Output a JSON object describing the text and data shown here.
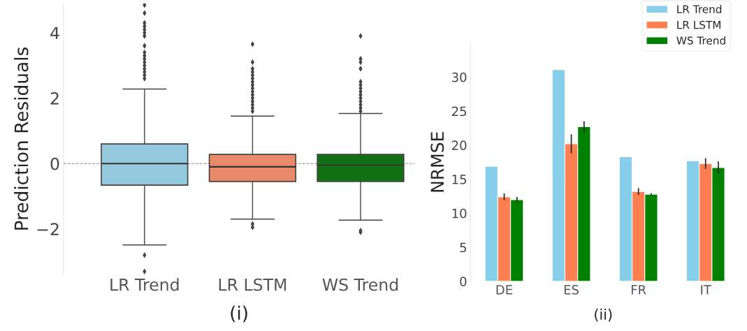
{
  "chart_data": [
    {
      "type": "box",
      "xlabel": "(i)",
      "ylabel": "Prediction Residuals",
      "categories": [
        "LR Trend",
        "LR LSTM",
        "WS Trend"
      ],
      "colors": [
        "#95c9de",
        "#e8896a",
        "#117011"
      ],
      "ylim": [
        -3.4,
        4.9
      ],
      "yticks": [
        {
          "value": -2,
          "label": "−2"
        },
        0,
        2,
        4
      ],
      "grid": false,
      "boxes": [
        {
          "low": -2.49,
          "q1": -0.66,
          "median": 0.0,
          "q3": 0.6,
          "high": 2.28,
          "outliers": [
            2.6,
            2.7,
            2.8,
            2.9,
            3.0,
            3.1,
            3.2,
            3.3,
            3.4,
            3.6,
            3.9,
            4.0,
            4.1,
            4.2,
            4.3,
            4.6,
            4.85,
            -2.8,
            -3.3
          ]
        },
        {
          "low": -1.7,
          "q1": -0.55,
          "median": -0.1,
          "q3": 0.28,
          "high": 1.45,
          "outliers": [
            1.6,
            1.7,
            1.8,
            1.9,
            2.0,
            2.1,
            2.2,
            2.3,
            2.4,
            2.5,
            2.6,
            2.7,
            2.8,
            2.9,
            3.1,
            3.65,
            -1.85,
            -1.95
          ]
        },
        {
          "low": -1.73,
          "q1": -0.55,
          "median": -0.05,
          "q3": 0.28,
          "high": 1.53,
          "outliers": [
            1.6,
            1.7,
            1.8,
            1.9,
            2.0,
            2.1,
            2.2,
            2.3,
            2.4,
            2.5,
            2.9,
            3.1,
            3.2,
            3.9,
            -2.05,
            -2.1
          ]
        }
      ],
      "ref_lines": [
        {
          "axis": "y",
          "value": 0,
          "color": "#888888",
          "line_style": "dashed"
        }
      ]
    },
    {
      "type": "bar",
      "xlabel": "(ii)",
      "ylabel": "NRMSE",
      "categories": [
        "DE",
        "ES",
        "FR",
        "IT"
      ],
      "ylim": [
        0,
        35
      ],
      "yticks": [
        0,
        5,
        10,
        15,
        20,
        25,
        30
      ],
      "grid": false,
      "legend": "top right",
      "series": [
        {
          "name": "LR Trend",
          "color": "#87ceeb",
          "values": [
            16.9,
            31.1,
            18.3,
            17.7
          ]
        },
        {
          "name": "LR LSTM",
          "color": "#ff7f50",
          "values": [
            12.4,
            20.2,
            13.2,
            17.3
          ],
          "errors": [
            0.5,
            1.4,
            0.5,
            0.8
          ]
        },
        {
          "name": "WS Trend",
          "color": "#008000",
          "values": [
            12.0,
            22.7,
            12.8,
            16.7
          ],
          "errors": [
            0.4,
            0.8,
            0.15,
            0.9
          ]
        }
      ]
    }
  ]
}
